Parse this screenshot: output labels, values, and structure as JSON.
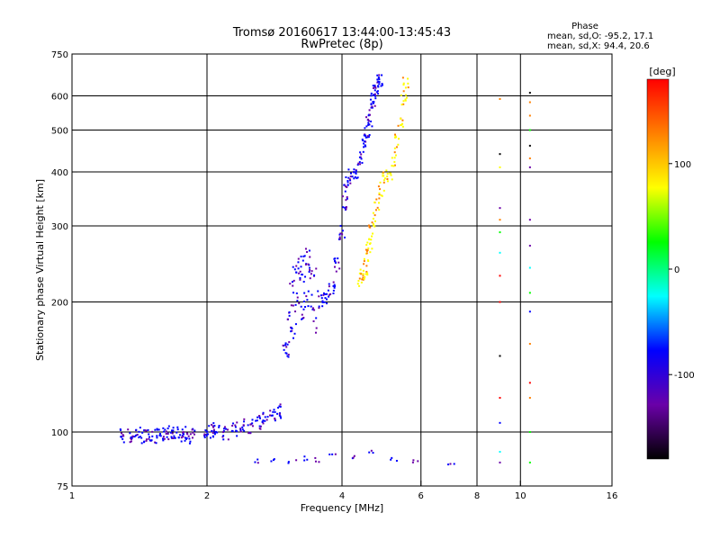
{
  "chart_data": {
    "type": "scatter",
    "title": "Tromsø 20160617 13:44:00-13:45:43",
    "subtitle": "RwPretec (8p)",
    "xlabel": "Frequency [MHz]",
    "ylabel": "Stationary phase Virtual Height [km]",
    "x_scale": "log",
    "y_scale": "log",
    "xlim": [
      1,
      16
    ],
    "ylim": [
      75,
      750
    ],
    "x_ticks": [
      1,
      2,
      4,
      6,
      8,
      10,
      16
    ],
    "y_ticks": [
      75,
      100,
      200,
      300,
      400,
      500,
      600,
      750
    ],
    "x_grid": [
      2,
      4,
      6,
      8,
      10
    ],
    "y_grid": [
      100,
      200,
      300,
      400,
      500,
      600
    ],
    "grid": true,
    "stats_header": "Phase",
    "stats": [
      "mean, sd,O: -95.2, 17.1",
      "mean, sd,X:  94.4, 20.6"
    ],
    "colorbar": {
      "label": "[deg]",
      "range": [
        -180,
        180
      ],
      "ticks": [
        100,
        0,
        -100
      ],
      "colormap": [
        "#000000",
        "#6a00a8",
        "#0000ff",
        "#00ffff",
        "#00ff00",
        "#ffff00",
        "#ff8000",
        "#ff0000"
      ]
    },
    "traces": [
      {
        "name": "",
        "color": "#1a3cff",
        "phase": -95,
        "points": [
          [
            1.3,
            98
          ],
          [
            1.35,
            98
          ],
          [
            1.4,
            99
          ],
          [
            1.45,
            98
          ],
          [
            1.5,
            99
          ],
          [
            1.55,
            98
          ],
          [
            1.6,
            99
          ],
          [
            1.65,
            100
          ],
          [
            1.7,
            99
          ],
          [
            1.75,
            98
          ],
          [
            1.8,
            99
          ],
          [
            1.85,
            98
          ],
          [
            2.0,
            100
          ],
          [
            2.05,
            101
          ],
          [
            2.1,
            101
          ],
          [
            2.2,
            100
          ],
          [
            2.3,
            102
          ],
          [
            2.4,
            103
          ],
          [
            2.5,
            103
          ],
          [
            2.6,
            105
          ],
          [
            2.7,
            108
          ],
          [
            2.8,
            110
          ],
          [
            2.9,
            112
          ],
          [
            3.0,
            155
          ],
          [
            3.05,
            175
          ],
          [
            3.1,
            195
          ],
          [
            3.15,
            210
          ],
          [
            3.2,
            215
          ],
          [
            3.25,
            220
          ],
          [
            3.3,
            225
          ],
          [
            3.35,
            230
          ],
          [
            3.4,
            215
          ],
          [
            3.5,
            205
          ],
          [
            3.6,
            200
          ],
          [
            3.7,
            205
          ],
          [
            3.8,
            215
          ],
          [
            3.9,
            245
          ],
          [
            4.0,
            290
          ],
          [
            4.05,
            340
          ],
          [
            4.1,
            375
          ],
          [
            4.2,
            390
          ],
          [
            4.3,
            400
          ],
          [
            4.4,
            430
          ],
          [
            4.5,
            470
          ],
          [
            4.55,
            500
          ],
          [
            4.6,
            530
          ],
          [
            4.65,
            560
          ],
          [
            4.7,
            590
          ],
          [
            4.75,
            620
          ],
          [
            4.8,
            640
          ],
          [
            4.85,
            650
          ]
        ]
      },
      {
        "name": "",
        "color": "#ffe400",
        "phase": 95,
        "points": [
          [
            4.4,
            225
          ],
          [
            4.45,
            230
          ],
          [
            4.5,
            240
          ],
          [
            4.55,
            255
          ],
          [
            4.6,
            270
          ],
          [
            4.65,
            290
          ],
          [
            4.7,
            310
          ],
          [
            4.8,
            340
          ],
          [
            4.9,
            365
          ],
          [
            5.0,
            385
          ],
          [
            5.1,
            400
          ],
          [
            5.2,
            430
          ],
          [
            5.3,
            470
          ],
          [
            5.4,
            520
          ],
          [
            5.5,
            580
          ],
          [
            5.55,
            640
          ]
        ]
      }
    ],
    "scattered_columns": [
      {
        "x": 9.0,
        "heights": [
          590,
          440,
          410,
          330,
          310,
          290,
          260,
          230,
          200,
          150,
          120,
          105,
          90,
          85
        ]
      },
      {
        "x": 10.5,
        "heights": [
          610,
          580,
          540,
          500,
          460,
          430,
          410,
          310,
          270,
          240,
          210,
          190,
          160,
          130,
          120,
          100,
          85
        ]
      }
    ],
    "low_echoes": [
      [
        2.6,
        86
      ],
      [
        2.8,
        86
      ],
      [
        3.1,
        86
      ],
      [
        3.3,
        87
      ],
      [
        3.5,
        86
      ],
      [
        3.8,
        88
      ],
      [
        4.2,
        88
      ],
      [
        4.6,
        90
      ],
      [
        5.2,
        86
      ],
      [
        5.8,
        85
      ],
      [
        7.0,
        84
      ]
    ]
  }
}
